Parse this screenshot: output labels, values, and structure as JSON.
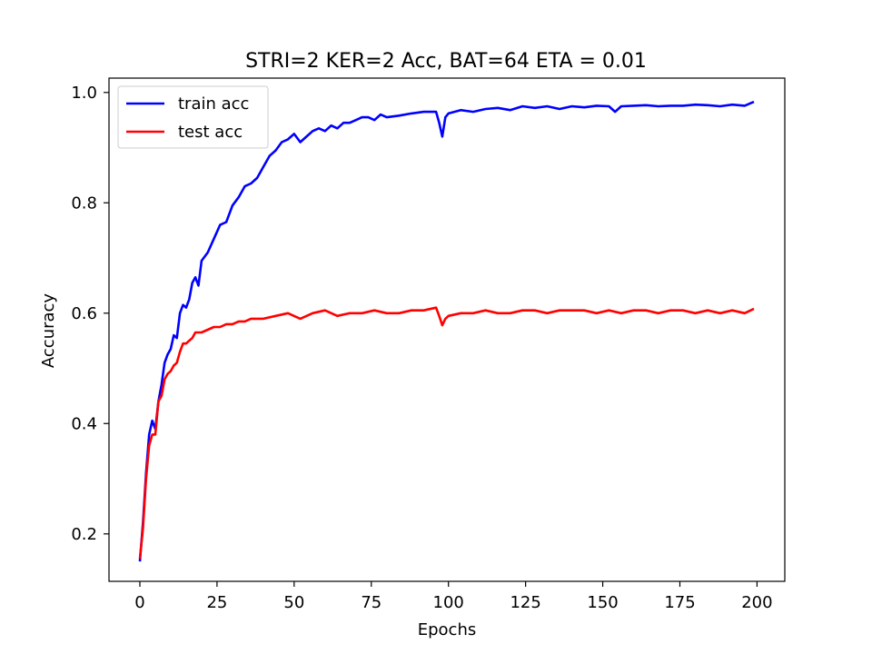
{
  "chart_data": {
    "type": "line",
    "title": "STRI=2 KER=2 Acc, BAT=64 ETA = 0.01",
    "xlabel": "Epochs",
    "ylabel": "Accuracy",
    "xlim": [
      -10,
      209
    ],
    "ylim": [
      0.114,
      1.026
    ],
    "xticks": [
      0,
      25,
      50,
      75,
      100,
      125,
      150,
      175,
      200
    ],
    "yticks": [
      0.2,
      0.4,
      0.6,
      0.8,
      1.0
    ],
    "xtick_labels": [
      "0",
      "25",
      "50",
      "75",
      "100",
      "125",
      "150",
      "175",
      "200"
    ],
    "ytick_labels": [
      "0.2",
      "0.4",
      "0.6",
      "0.8",
      "1.0"
    ],
    "grid": false,
    "legend_position": "upper-left",
    "series": [
      {
        "name": "train acc",
        "color": "#0000ff",
        "x": [
          0,
          1,
          2,
          3,
          4,
          5,
          6,
          7,
          8,
          9,
          10,
          11,
          12,
          13,
          14,
          15,
          16,
          17,
          18,
          19,
          20,
          22,
          24,
          26,
          28,
          30,
          32,
          34,
          36,
          38,
          40,
          42,
          44,
          46,
          48,
          50,
          52,
          54,
          56,
          58,
          60,
          62,
          64,
          66,
          68,
          70,
          72,
          74,
          76,
          78,
          80,
          84,
          88,
          92,
          96,
          97,
          98,
          99,
          100,
          104,
          108,
          112,
          116,
          120,
          124,
          128,
          132,
          136,
          140,
          144,
          148,
          152,
          154,
          156,
          160,
          164,
          168,
          172,
          176,
          180,
          184,
          188,
          192,
          196,
          199
        ],
        "y": [
          0.15,
          0.22,
          0.31,
          0.38,
          0.405,
          0.39,
          0.44,
          0.47,
          0.51,
          0.525,
          0.535,
          0.56,
          0.555,
          0.6,
          0.615,
          0.61,
          0.625,
          0.655,
          0.665,
          0.65,
          0.695,
          0.71,
          0.735,
          0.76,
          0.765,
          0.795,
          0.81,
          0.83,
          0.835,
          0.845,
          0.865,
          0.885,
          0.895,
          0.91,
          0.915,
          0.925,
          0.91,
          0.92,
          0.93,
          0.935,
          0.93,
          0.94,
          0.935,
          0.945,
          0.945,
          0.95,
          0.955,
          0.955,
          0.95,
          0.96,
          0.955,
          0.958,
          0.962,
          0.965,
          0.965,
          0.945,
          0.92,
          0.955,
          0.962,
          0.968,
          0.965,
          0.97,
          0.972,
          0.968,
          0.975,
          0.972,
          0.975,
          0.97,
          0.975,
          0.973,
          0.976,
          0.975,
          0.965,
          0.975,
          0.976,
          0.977,
          0.975,
          0.976,
          0.976,
          0.978,
          0.977,
          0.975,
          0.978,
          0.976,
          0.983
        ]
      },
      {
        "name": "test acc",
        "color": "#ff0000",
        "x": [
          0,
          1,
          2,
          3,
          4,
          5,
          6,
          7,
          8,
          9,
          10,
          11,
          12,
          13,
          14,
          15,
          16,
          17,
          18,
          20,
          22,
          24,
          26,
          28,
          30,
          32,
          34,
          36,
          38,
          40,
          44,
          48,
          52,
          56,
          60,
          64,
          68,
          72,
          76,
          80,
          84,
          88,
          92,
          96,
          97,
          98,
          99,
          100,
          104,
          108,
          112,
          116,
          120,
          124,
          128,
          132,
          136,
          140,
          144,
          148,
          152,
          156,
          160,
          164,
          168,
          172,
          176,
          180,
          184,
          188,
          192,
          196,
          199
        ],
        "y": [
          0.155,
          0.21,
          0.3,
          0.36,
          0.38,
          0.38,
          0.44,
          0.45,
          0.48,
          0.49,
          0.495,
          0.505,
          0.51,
          0.53,
          0.545,
          0.545,
          0.55,
          0.555,
          0.565,
          0.565,
          0.57,
          0.575,
          0.575,
          0.58,
          0.58,
          0.585,
          0.585,
          0.59,
          0.59,
          0.59,
          0.595,
          0.6,
          0.59,
          0.6,
          0.605,
          0.595,
          0.6,
          0.6,
          0.605,
          0.6,
          0.6,
          0.605,
          0.605,
          0.61,
          0.595,
          0.578,
          0.59,
          0.595,
          0.6,
          0.6,
          0.605,
          0.6,
          0.6,
          0.605,
          0.605,
          0.6,
          0.605,
          0.605,
          0.605,
          0.6,
          0.605,
          0.6,
          0.605,
          0.605,
          0.6,
          0.605,
          0.605,
          0.6,
          0.605,
          0.6,
          0.605,
          0.6,
          0.608
        ]
      }
    ]
  }
}
